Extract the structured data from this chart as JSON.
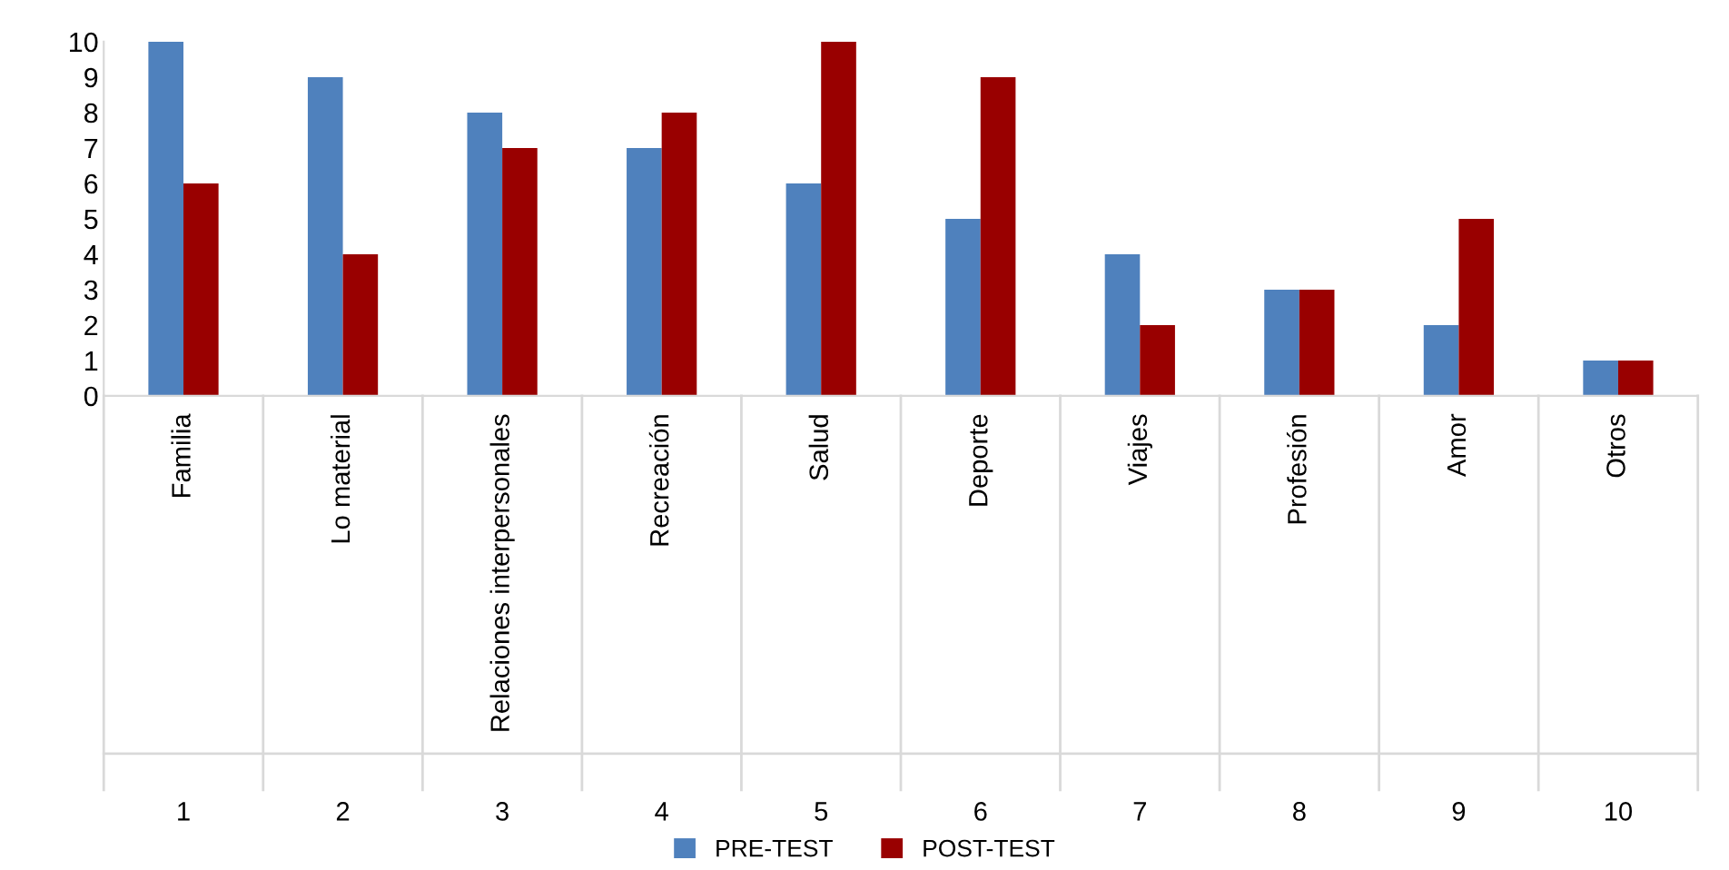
{
  "chart_data": {
    "type": "bar",
    "categories": [
      "Familia",
      "Lo material",
      "Relaciones interpersonales",
      "Recreación",
      "Salud",
      "Deporte",
      "Viajes",
      "Profesión",
      "Amor",
      "Otros"
    ],
    "annotations": [
      "1",
      "2",
      "3",
      "4",
      "5",
      "6",
      "7",
      "8",
      "9",
      "10"
    ],
    "series": [
      {
        "name": "PRE-TEST",
        "color": "#4f81bd",
        "values": [
          10,
          9,
          8,
          7,
          6,
          5,
          4,
          3,
          2,
          1
        ]
      },
      {
        "name": "POST-TEST",
        "color": "#990000",
        "values": [
          6,
          4,
          7,
          8,
          10,
          9,
          2,
          3,
          5,
          1
        ]
      }
    ],
    "ylim": [
      0,
      10
    ],
    "yticks": [
      0,
      1,
      2,
      3,
      4,
      5,
      6,
      7,
      8,
      9,
      10
    ],
    "grid": false,
    "legend": "bottom"
  }
}
